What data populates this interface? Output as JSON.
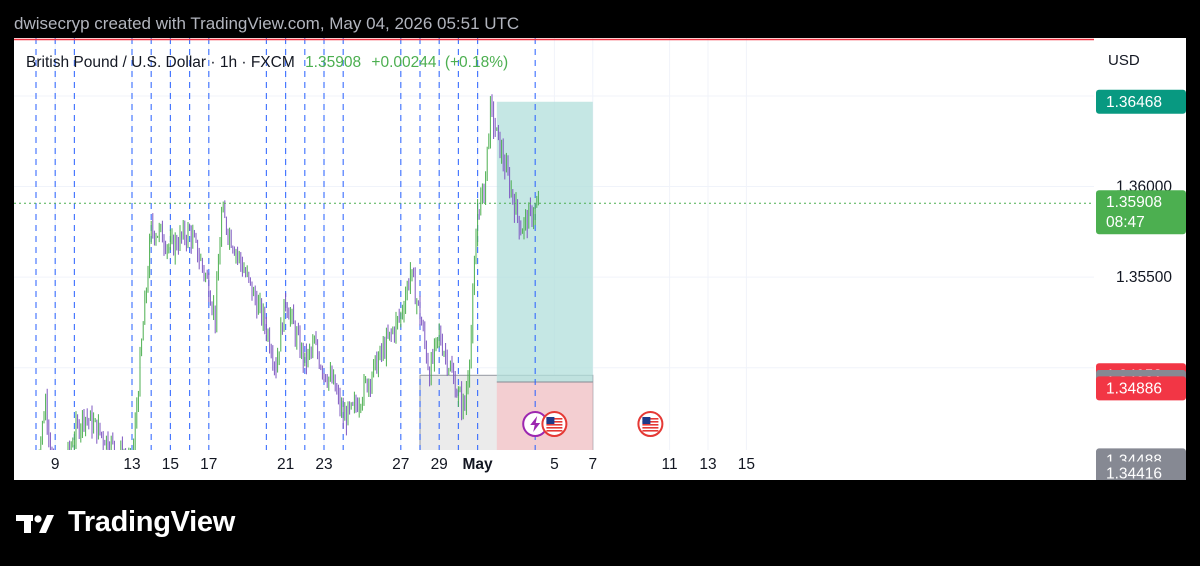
{
  "caption": "dwisecryp created with TradingView.com, May 04, 2026 05:51 UTC",
  "legend": {
    "title": "British Pound / U.S. Dollar · 1h · FXCM",
    "price": "1.35908",
    "change": "+0.00244",
    "change_pct": "(+0.18%)"
  },
  "currency": "USD",
  "brand": "TradingView",
  "colors": {
    "up": "#4caf50",
    "down": "#7e57c2",
    "target_zone": "#b2dfdb",
    "stop_zone": "#f5c9cc",
    "gray_box": "#ebebeb",
    "vlines": "#2962ff",
    "hline": "#f23645",
    "current_price": "#4caf50",
    "tag_teal": "#089981",
    "tag_red": "#f23645",
    "tag_gray": "#868993"
  },
  "chart_data": {
    "type": "candlestick",
    "symbol": "GBP/USD",
    "interval": "1h",
    "source": "FXCM",
    "x_axis": {
      "ticks": [
        "9",
        "13",
        "15",
        "17",
        "21",
        "23",
        "27",
        "29",
        "May",
        "5",
        "7",
        "11",
        "13",
        "15"
      ],
      "tick_dates": [
        "Apr 9",
        "Apr 13",
        "Apr 15",
        "Apr 17",
        "Apr 21",
        "Apr 23",
        "Apr 27",
        "Apr 29",
        "May 1",
        "May 5",
        "May 7",
        "May 11",
        "May 13",
        "May 15"
      ]
    },
    "y_axis": {
      "range": [
        1.3438,
        1.3682
      ],
      "ticks": [
        1.355,
        1.36
      ],
      "tick_labels": [
        "1.35500",
        "1.36000"
      ]
    },
    "price_tags": [
      {
        "label": "1.36468",
        "value": 1.36468,
        "color": "teal"
      },
      {
        "label": "1.35908",
        "value": 1.35908,
        "color": "green",
        "countdown": "08:47"
      },
      {
        "label": "1.34958",
        "value": 1.34958,
        "color": "red"
      },
      {
        "label": "1.34921",
        "value": 1.34921,
        "color": "gray"
      },
      {
        "label": "1.34886",
        "value": 1.34886,
        "color": "red"
      },
      {
        "label": "1.34488",
        "value": 1.34488,
        "color": "gray"
      },
      {
        "label": "1.34416",
        "value": 1.34416,
        "color": "gray"
      }
    ],
    "horizontal_lines": [
      {
        "value": 1.3441,
        "color": "red"
      }
    ],
    "top_line_color": "red",
    "current_price": 1.35908,
    "long_position": {
      "start": "May 2",
      "end": "May 7",
      "entry": 1.34921,
      "target": 1.36468,
      "stop": 1.3444
    },
    "gray_zone": {
      "start": "Apr 28",
      "end": "May 7",
      "top": 1.34958,
      "bottom": 1.34523
    },
    "session_lines": [
      "Apr 8",
      "Apr 9",
      "Apr 10",
      "Apr 13",
      "Apr 14",
      "Apr 15",
      "Apr 16",
      "Apr 17",
      "Apr 20",
      "Apr 21",
      "Apr 22",
      "Apr 23",
      "Apr 24",
      "Apr 27",
      "Apr 28",
      "Apr 29",
      "Apr 30",
      "May 1",
      "May 4"
    ],
    "events": [
      {
        "date": "May 4",
        "icon": "lightning"
      },
      {
        "date": "May 5",
        "icon": "us-flag"
      },
      {
        "date": "May 10",
        "icon": "us-flag"
      }
    ],
    "price_path": [
      {
        "date": "Apr 8",
        "close": 1.3441
      },
      {
        "date": "Apr 8",
        "close": 1.3482
      },
      {
        "date": "Apr 9",
        "close": 1.3435
      },
      {
        "date": "Apr 9",
        "close": 1.3446
      },
      {
        "date": "Apr 10",
        "close": 1.3463
      },
      {
        "date": "Apr 10",
        "close": 1.3474
      },
      {
        "date": "Apr 13",
        "close": 1.3445
      },
      {
        "date": "Apr 13",
        "close": 1.3513
      },
      {
        "date": "Apr 14",
        "close": 1.3576
      },
      {
        "date": "Apr 14",
        "close": 1.3574
      },
      {
        "date": "Apr 15",
        "close": 1.3566
      },
      {
        "date": "Apr 15",
        "close": 1.3571
      },
      {
        "date": "Apr 16",
        "close": 1.3575
      },
      {
        "date": "Apr 16",
        "close": 1.3561
      },
      {
        "date": "Apr 17",
        "close": 1.3545
      },
      {
        "date": "Apr 17",
        "close": 1.3528
      },
      {
        "date": "Apr 17",
        "close": 1.3585
      },
      {
        "date": "Apr 20",
        "close": 1.3522
      },
      {
        "date": "Apr 20",
        "close": 1.3501
      },
      {
        "date": "Apr 21",
        "close": 1.3538
      },
      {
        "date": "Apr 21",
        "close": 1.3519
      },
      {
        "date": "Apr 22",
        "close": 1.3503
      },
      {
        "date": "Apr 22",
        "close": 1.3512
      },
      {
        "date": "Apr 23",
        "close": 1.3498
      },
      {
        "date": "Apr 23",
        "close": 1.3491
      },
      {
        "date": "Apr 24",
        "close": 1.3472
      },
      {
        "date": "Apr 24",
        "close": 1.3476
      },
      {
        "date": "Apr 27",
        "close": 1.3529
      },
      {
        "date": "Apr 27",
        "close": 1.3553
      },
      {
        "date": "Apr 28",
        "close": 1.3529
      },
      {
        "date": "Apr 28",
        "close": 1.3497
      },
      {
        "date": "Apr 29",
        "close": 1.3518
      },
      {
        "date": "Apr 29",
        "close": 1.3502
      },
      {
        "date": "Apr 30",
        "close": 1.3484
      },
      {
        "date": "Apr 30",
        "close": 1.3478
      },
      {
        "date": "Apr 30",
        "close": 1.3519
      },
      {
        "date": "May 1",
        "close": 1.3588
      },
      {
        "date": "May 1",
        "close": 1.3597
      },
      {
        "date": "May 1",
        "close": 1.3642
      },
      {
        "date": "May 3",
        "close": 1.3577
      },
      {
        "date": "May 4",
        "close": 1.35908
      }
    ]
  }
}
